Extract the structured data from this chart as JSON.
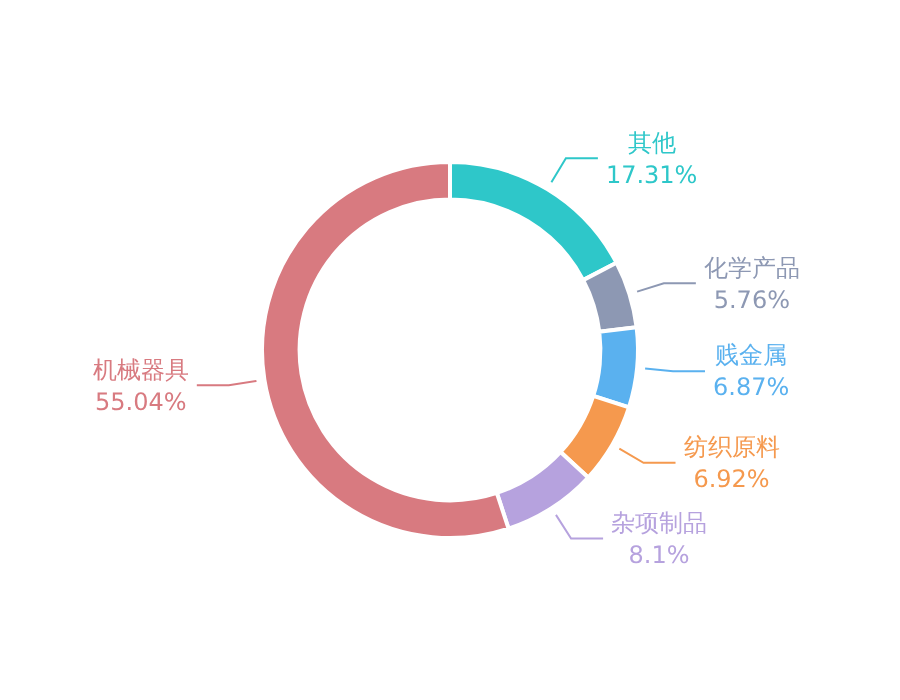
{
  "chart_data": {
    "type": "donut",
    "categories": [
      "其他",
      "化学产品",
      "贱金属",
      "纺织原料",
      "杂项制品",
      "机械器具"
    ],
    "values": [
      17.31,
      5.76,
      6.87,
      6.92,
      8.1,
      55.04
    ],
    "value_labels": [
      "17.31%",
      "5.76%",
      "6.87%",
      "6.92%",
      "8.1%",
      "55.04%"
    ],
    "colors": [
      "#2ec7c9",
      "#8d98b3",
      "#5ab1ef",
      "#f5994e",
      "#b6a2de",
      "#d87a80"
    ]
  }
}
